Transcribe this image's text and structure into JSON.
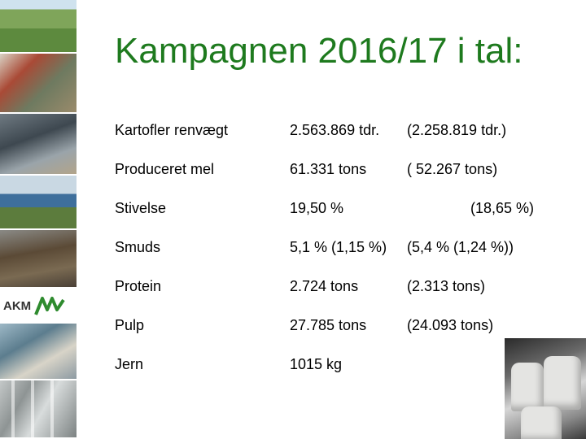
{
  "slide": {
    "title": "Kampagnen 2016/17 i tal:"
  },
  "sidebar": {
    "logo_text": "AKM",
    "logo_color": "#2e8b2e",
    "photos": [
      "field-photo",
      "farm-photo",
      "worker-photo",
      "tractor-photo",
      "conveyor-photo",
      "lab-photo",
      "plant-photo"
    ]
  },
  "table": {
    "rows": [
      {
        "label": "Kartofler renvægt",
        "value": "2.563.869 tdr.",
        "previous": "(2.258.819 tdr.)"
      },
      {
        "label": "Produceret mel",
        "value": "61.331 tons",
        "previous": "( 52.267 tons)"
      },
      {
        "label": "Stivelse",
        "value": "19,50 %",
        "previous": "(18,65 %)"
      },
      {
        "label": "Smuds",
        "value": "5,1 % (1,15 %)",
        "previous": "(5,4 % (1,24 %))"
      },
      {
        "label": "Protein",
        "value": "2.724 tons",
        "previous": "(2.313 tons)"
      },
      {
        "label": "Pulp",
        "value": "27.785 tons",
        "previous": "(24.093 tons)"
      },
      {
        "label": "Jern",
        "value": "1015 kg",
        "previous": ""
      }
    ]
  },
  "colors": {
    "title": "#1e7a1e",
    "text": "#000000",
    "background": "#ffffff"
  }
}
